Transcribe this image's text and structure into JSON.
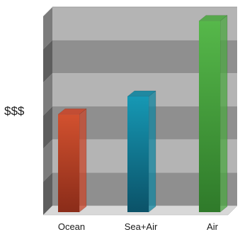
{
  "chart_data": {
    "type": "bar",
    "title": "",
    "xlabel": "",
    "ylabel": "$$$",
    "categories": [
      "Ocean",
      "Sea+Air",
      "Air"
    ],
    "values": [
      46,
      55,
      93
    ],
    "ylim": [
      0,
      100
    ],
    "grid": true,
    "colors": {
      "bars": [
        "#c8462a",
        "#10849f",
        "#4ba640"
      ],
      "band_light": "#b4b4b4",
      "band_dark": "#8f8f8f",
      "side_wall": "#6f6f6f",
      "floor": "#d8d8d8"
    }
  }
}
